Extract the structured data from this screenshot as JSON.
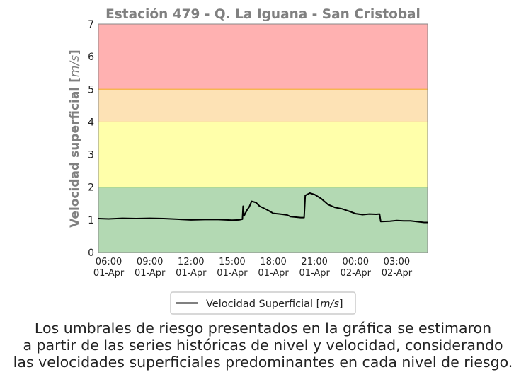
{
  "chart_data": {
    "type": "line",
    "title": "Estación 479 - Q. La Iguana - San Cristobal",
    "ylabel": "Velocidad superficial [m/s]",
    "xlabel": "",
    "ylim": [
      0,
      7
    ],
    "xlim": [
      "2024-04-01T05:15",
      "2024-04-02T05:15"
    ],
    "yticks": [
      0,
      1,
      2,
      3,
      4,
      5,
      6,
      7
    ],
    "xticks": [
      {
        "t": "2024-04-01T06:00",
        "line1": "06:00",
        "line2": "01-Apr"
      },
      {
        "t": "2024-04-01T09:00",
        "line1": "09:00",
        "line2": "01-Apr"
      },
      {
        "t": "2024-04-01T12:00",
        "line1": "12:00",
        "line2": "01-Apr"
      },
      {
        "t": "2024-04-01T15:00",
        "line1": "15:00",
        "line2": "01-Apr"
      },
      {
        "t": "2024-04-01T18:00",
        "line1": "18:00",
        "line2": "01-Apr"
      },
      {
        "t": "2024-04-01T21:00",
        "line1": "21:00",
        "line2": "01-Apr"
      },
      {
        "t": "2024-04-02T00:00",
        "line1": "00:00",
        "line2": "02-Apr"
      },
      {
        "t": "2024-04-02T03:00",
        "line1": "03:00",
        "line2": "02-Apr"
      }
    ],
    "risk_bands": [
      {
        "from": 0,
        "to": 2,
        "color": "#b3d9b3",
        "edge": "#a6d96a"
      },
      {
        "from": 2,
        "to": 4,
        "color": "#ffffaa",
        "edge": "#f2e85a"
      },
      {
        "from": 4,
        "to": 5,
        "color": "#fde2b5",
        "edge": "#f5b041"
      },
      {
        "from": 5,
        "to": 7,
        "color": "#ffb1b1",
        "edge": "#f08080"
      }
    ],
    "series": [
      {
        "name": "Velocidad Superficial [m/s]",
        "color": "#000000",
        "points": [
          [
            "2024-04-01T05:15",
            1.04
          ],
          [
            "2024-04-01T06:00",
            1.03
          ],
          [
            "2024-04-01T07:00",
            1.05
          ],
          [
            "2024-04-01T08:00",
            1.04
          ],
          [
            "2024-04-01T09:00",
            1.05
          ],
          [
            "2024-04-01T10:00",
            1.04
          ],
          [
            "2024-04-01T11:00",
            1.02
          ],
          [
            "2024-04-01T12:00",
            1.0
          ],
          [
            "2024-04-01T13:00",
            1.01
          ],
          [
            "2024-04-01T14:00",
            1.01
          ],
          [
            "2024-04-01T15:00",
            0.99
          ],
          [
            "2024-04-01T15:30",
            1.0
          ],
          [
            "2024-04-01T15:45",
            1.02
          ],
          [
            "2024-04-01T15:48",
            1.42
          ],
          [
            "2024-04-01T15:52",
            1.12
          ],
          [
            "2024-04-01T16:05",
            1.3
          ],
          [
            "2024-04-01T16:15",
            1.4
          ],
          [
            "2024-04-01T16:25",
            1.57
          ],
          [
            "2024-04-01T16:45",
            1.53
          ],
          [
            "2024-04-01T17:00",
            1.42
          ],
          [
            "2024-04-01T17:30",
            1.32
          ],
          [
            "2024-04-01T18:00",
            1.2
          ],
          [
            "2024-04-01T18:30",
            1.18
          ],
          [
            "2024-04-01T19:00",
            1.15
          ],
          [
            "2024-04-01T19:15",
            1.1
          ],
          [
            "2024-04-01T20:00",
            1.07
          ],
          [
            "2024-04-01T20:15",
            1.07
          ],
          [
            "2024-04-01T20:20",
            1.75
          ],
          [
            "2024-04-01T20:40",
            1.82
          ],
          [
            "2024-04-01T21:00",
            1.78
          ],
          [
            "2024-04-01T21:30",
            1.65
          ],
          [
            "2024-04-01T22:00",
            1.47
          ],
          [
            "2024-04-01T22:30",
            1.38
          ],
          [
            "2024-04-01T23:00",
            1.34
          ],
          [
            "2024-04-01T23:30",
            1.27
          ],
          [
            "2024-04-02T00:00",
            1.19
          ],
          [
            "2024-04-02T00:30",
            1.16
          ],
          [
            "2024-04-02T01:00",
            1.18
          ],
          [
            "2024-04-02T01:30",
            1.17
          ],
          [
            "2024-04-02T01:45",
            1.18
          ],
          [
            "2024-04-02T01:50",
            0.95
          ],
          [
            "2024-04-02T02:30",
            0.96
          ],
          [
            "2024-04-02T03:00",
            0.98
          ],
          [
            "2024-04-02T03:30",
            0.97
          ],
          [
            "2024-04-02T04:00",
            0.97
          ],
          [
            "2024-04-02T05:00",
            0.92
          ],
          [
            "2024-04-02T05:15",
            0.92
          ]
        ]
      }
    ],
    "legend_label_prefix": "Velocidad Superficial [",
    "legend_label_unit": "m/s",
    "legend_label_suffix": "]",
    "ylabel_prefix": "Velocidad superficial [",
    "ylabel_unit": "m/s",
    "ylabel_suffix": "]",
    "legend_position": "below-center",
    "grid": false
  },
  "footnote": {
    "lines": [
      "Los umbrales de riesgo presentados en la gráfica se estimaron",
      "a partir de las series históricas de nivel y velocidad, considerando",
      "las velocidades superficiales predominantes en cada nivel de riesgo."
    ]
  },
  "colors": {
    "title": "#808080",
    "axis_label": "#808080",
    "tick_text": "#222222",
    "frame": "#888888"
  }
}
